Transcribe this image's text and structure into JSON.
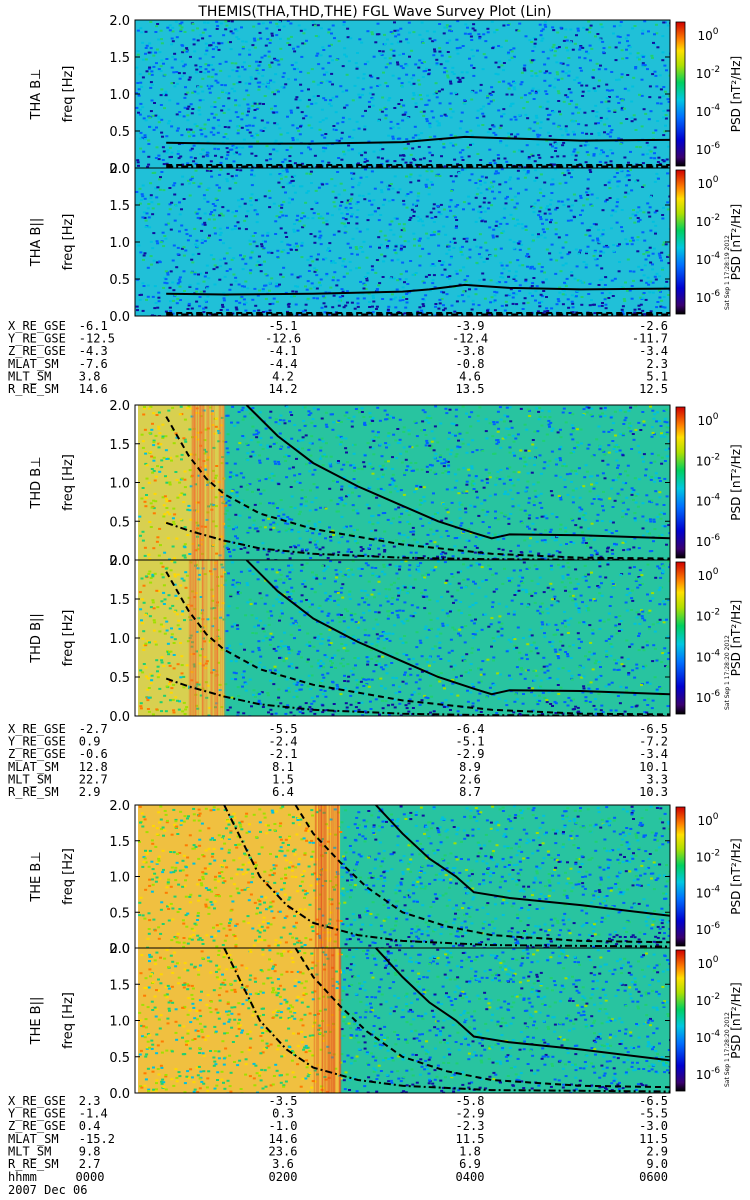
{
  "title": "THEMIS(THA,THD,THE) FGL Wave Survey Plot (Lin)",
  "colors": {
    "axis": "#000000",
    "background": "#ffffff"
  },
  "chart_data": {
    "type": "heatmap",
    "xlabel": "hhmm",
    "date_label": "2007 Dec 06",
    "x_ticks": [
      "0000",
      "0200",
      "0400",
      "0600"
    ],
    "y_axis_label": "freq [Hz]",
    "y_ticks": [
      "0.0",
      "0.5",
      "1.0",
      "1.5",
      "2.0"
    ],
    "ylim": [
      0,
      2.0
    ],
    "colorbar": {
      "label": "PSD [nT²/Hz]",
      "ticks": [
        {
          "base": "10",
          "exp": "0"
        },
        {
          "base": "10",
          "exp": "-2"
        },
        {
          "base": "10",
          "exp": "-4"
        },
        {
          "base": "10",
          "exp": "-6"
        }
      ]
    },
    "panels": [
      {
        "probe": "THA",
        "component": "B⊥",
        "label": "THA B⊥",
        "stamp": "",
        "style": "quiet",
        "curves": {
          "solid": [
            [
              0.35,
              0.34
            ],
            [
              1,
              0.33
            ],
            [
              2,
              0.33
            ],
            [
              3,
              0.35
            ],
            [
              3.3,
              0.38
            ],
            [
              3.7,
              0.42
            ],
            [
              4.2,
              0.4
            ],
            [
              5,
              0.37
            ],
            [
              6,
              0.38
            ]
          ],
          "dashed": [
            [
              0.35,
              0.04
            ],
            [
              6,
              0.04
            ]
          ],
          "dashdot": [
            [
              0.35,
              0.02
            ],
            [
              6,
              0.02
            ]
          ]
        }
      },
      {
        "probe": "THA",
        "component": "B||",
        "label": "THA B||",
        "stamp": "Sat Sep 1 17:28:19 2012",
        "style": "quiet",
        "curves": {
          "solid": [
            [
              0.35,
              0.3
            ],
            [
              1,
              0.29
            ],
            [
              2,
              0.3
            ],
            [
              3,
              0.33
            ],
            [
              3.3,
              0.36
            ],
            [
              3.7,
              0.42
            ],
            [
              4.2,
              0.38
            ],
            [
              5,
              0.36
            ],
            [
              6,
              0.37
            ]
          ],
          "dashed": [
            [
              0.35,
              0.04
            ],
            [
              6,
              0.04
            ]
          ],
          "dashdot": [
            [
              0.35,
              0.02
            ],
            [
              6,
              0.02
            ]
          ]
        }
      },
      {
        "probe": "THD",
        "component": "B⊥",
        "label": "THD B⊥",
        "stamp": "",
        "style": "mixed",
        "warm_until": 1.0,
        "curves": {
          "solid": [
            [
              1.25,
              2.0
            ],
            [
              1.6,
              1.6
            ],
            [
              2.0,
              1.25
            ],
            [
              2.5,
              0.95
            ],
            [
              3.0,
              0.7
            ],
            [
              3.4,
              0.5
            ],
            [
              3.8,
              0.35
            ],
            [
              4.0,
              0.28
            ],
            [
              4.2,
              0.33
            ],
            [
              5,
              0.32
            ],
            [
              6,
              0.28
            ]
          ],
          "dashed": [
            [
              0.35,
              1.85
            ],
            [
              0.6,
              1.35
            ],
            [
              0.8,
              1.05
            ],
            [
              1.0,
              0.85
            ],
            [
              1.4,
              0.6
            ],
            [
              2,
              0.4
            ],
            [
              3,
              0.2
            ],
            [
              4,
              0.08
            ],
            [
              5,
              0.03
            ],
            [
              6,
              0.02
            ]
          ],
          "dashdot": [
            [
              0.35,
              0.48
            ],
            [
              0.6,
              0.38
            ],
            [
              1.0,
              0.25
            ],
            [
              1.4,
              0.15
            ],
            [
              2,
              0.08
            ],
            [
              3,
              0.03
            ],
            [
              4,
              0.01
            ],
            [
              6,
              0.0
            ]
          ]
        }
      },
      {
        "probe": "THD",
        "component": "B||",
        "label": "THD B||",
        "stamp": "Sat Sep 1 17:28:20 2012",
        "style": "mixed",
        "warm_until": 1.0,
        "curves": {
          "solid": [
            [
              1.25,
              2.0
            ],
            [
              1.6,
              1.6
            ],
            [
              2.0,
              1.25
            ],
            [
              2.5,
              0.95
            ],
            [
              3.0,
              0.7
            ],
            [
              3.4,
              0.5
            ],
            [
              3.8,
              0.35
            ],
            [
              4.0,
              0.28
            ],
            [
              4.2,
              0.33
            ],
            [
              5,
              0.32
            ],
            [
              6,
              0.28
            ]
          ],
          "dashed": [
            [
              0.35,
              1.85
            ],
            [
              0.6,
              1.35
            ],
            [
              0.8,
              1.05
            ],
            [
              1.0,
              0.85
            ],
            [
              1.4,
              0.6
            ],
            [
              2,
              0.4
            ],
            [
              3,
              0.2
            ],
            [
              4,
              0.08
            ],
            [
              5,
              0.03
            ],
            [
              6,
              0.02
            ]
          ],
          "dashdot": [
            [
              0.35,
              0.48
            ],
            [
              0.6,
              0.38
            ],
            [
              1.0,
              0.25
            ],
            [
              1.4,
              0.15
            ],
            [
              2,
              0.08
            ],
            [
              3,
              0.03
            ],
            [
              4,
              0.01
            ],
            [
              6,
              0.0
            ]
          ]
        }
      },
      {
        "probe": "THE",
        "component": "B⊥",
        "label": "THE B⊥",
        "stamp": "",
        "style": "active",
        "warm_until": 2.3,
        "curves": {
          "solid": [
            [
              2.7,
              2.0
            ],
            [
              3.0,
              1.6
            ],
            [
              3.3,
              1.25
            ],
            [
              3.6,
              1.0
            ],
            [
              3.8,
              0.78
            ],
            [
              4.2,
              0.7
            ],
            [
              5,
              0.6
            ],
            [
              6,
              0.45
            ]
          ],
          "dashed": [
            [
              1.8,
              2.0
            ],
            [
              2.0,
              1.6
            ],
            [
              2.3,
              1.2
            ],
            [
              2.6,
              0.85
            ],
            [
              3,
              0.5
            ],
            [
              3.5,
              0.3
            ],
            [
              4,
              0.18
            ],
            [
              5,
              0.1
            ],
            [
              6,
              0.08
            ]
          ],
          "dashdot": [
            [
              1.0,
              2.0
            ],
            [
              1.2,
              1.5
            ],
            [
              1.4,
              1.0
            ],
            [
              1.7,
              0.6
            ],
            [
              2,
              0.35
            ],
            [
              2.5,
              0.18
            ],
            [
              3,
              0.1
            ],
            [
              4,
              0.04
            ],
            [
              6,
              0.02
            ]
          ]
        }
      },
      {
        "probe": "THE",
        "component": "B||",
        "label": "THE B||",
        "stamp": "Sat Sep 1 17:28:20 2012",
        "style": "active",
        "warm_until": 2.3,
        "curves": {
          "solid": [
            [
              2.7,
              2.0
            ],
            [
              3.0,
              1.6
            ],
            [
              3.3,
              1.25
            ],
            [
              3.6,
              1.0
            ],
            [
              3.8,
              0.78
            ],
            [
              4.2,
              0.7
            ],
            [
              5,
              0.6
            ],
            [
              6,
              0.45
            ]
          ],
          "dashed": [
            [
              1.8,
              2.0
            ],
            [
              2.0,
              1.6
            ],
            [
              2.3,
              1.2
            ],
            [
              2.6,
              0.85
            ],
            [
              3,
              0.5
            ],
            [
              3.5,
              0.3
            ],
            [
              4,
              0.18
            ],
            [
              5,
              0.1
            ],
            [
              6,
              0.08
            ]
          ],
          "dashdot": [
            [
              1.0,
              2.0
            ],
            [
              1.2,
              1.5
            ],
            [
              1.4,
              1.0
            ],
            [
              1.7,
              0.6
            ],
            [
              2,
              0.35
            ],
            [
              2.5,
              0.18
            ],
            [
              3,
              0.1
            ],
            [
              4,
              0.04
            ],
            [
              6,
              0.02
            ]
          ]
        }
      }
    ],
    "ephemeris": [
      {
        "probe": "THA",
        "rows": [
          {
            "label": "X_RE_GSE",
            "values": [
              "-6.1",
              "-5.1",
              "-3.9",
              "-2.6"
            ]
          },
          {
            "label": "Y_RE_GSE",
            "values": [
              "-12.5",
              "-12.6",
              "-12.4",
              "-11.7"
            ]
          },
          {
            "label": "Z_RE_GSE",
            "values": [
              "-4.3",
              "-4.1",
              "-3.8",
              "-3.4"
            ]
          },
          {
            "label": "MLAT_SM",
            "values": [
              "-7.6",
              "-4.4",
              "-0.8",
              "2.3"
            ]
          },
          {
            "label": "MLT_SM",
            "values": [
              "3.8",
              "4.2",
              "4.6",
              "5.1"
            ]
          },
          {
            "label": "R_RE_SM",
            "values": [
              "14.6",
              "14.2",
              "13.5",
              "12.5"
            ]
          }
        ]
      },
      {
        "probe": "THD",
        "rows": [
          {
            "label": "X_RE_GSE",
            "values": [
              "-2.7",
              "-5.5",
              "-6.4",
              "-6.5"
            ]
          },
          {
            "label": "Y_RE_GSE",
            "values": [
              "0.9",
              "-2.4",
              "-5.1",
              "-7.2"
            ]
          },
          {
            "label": "Z_RE_GSE",
            "values": [
              "-0.6",
              "-2.1",
              "-2.9",
              "-3.4"
            ]
          },
          {
            "label": "MLAT_SM",
            "values": [
              "12.8",
              "8.1",
              "8.9",
              "10.1"
            ]
          },
          {
            "label": "MLT_SM",
            "values": [
              "22.7",
              "1.5",
              "2.6",
              "3.3"
            ]
          },
          {
            "label": "R_RE_SM",
            "values": [
              "2.9",
              "6.4",
              "8.7",
              "10.3"
            ]
          }
        ]
      },
      {
        "probe": "THE",
        "rows": [
          {
            "label": "X_RE_GSE",
            "values": [
              "2.3",
              "-3.5",
              "-5.8",
              "-6.5"
            ]
          },
          {
            "label": "Y_RE_GSE",
            "values": [
              "-1.4",
              "0.3",
              "-2.9",
              "-5.5"
            ]
          },
          {
            "label": "Z_RE_GSE",
            "values": [
              "0.4",
              "-1.0",
              "-2.3",
              "-3.0"
            ]
          },
          {
            "label": "MLAT_SM",
            "values": [
              "-15.2",
              "14.6",
              "11.5",
              "11.5"
            ]
          },
          {
            "label": "MLT_SM",
            "values": [
              "9.8",
              "23.6",
              "1.8",
              "2.9"
            ]
          },
          {
            "label": "R_RE_SM",
            "values": [
              "2.7",
              "3.6",
              "6.9",
              "9.0"
            ]
          }
        ]
      }
    ]
  }
}
